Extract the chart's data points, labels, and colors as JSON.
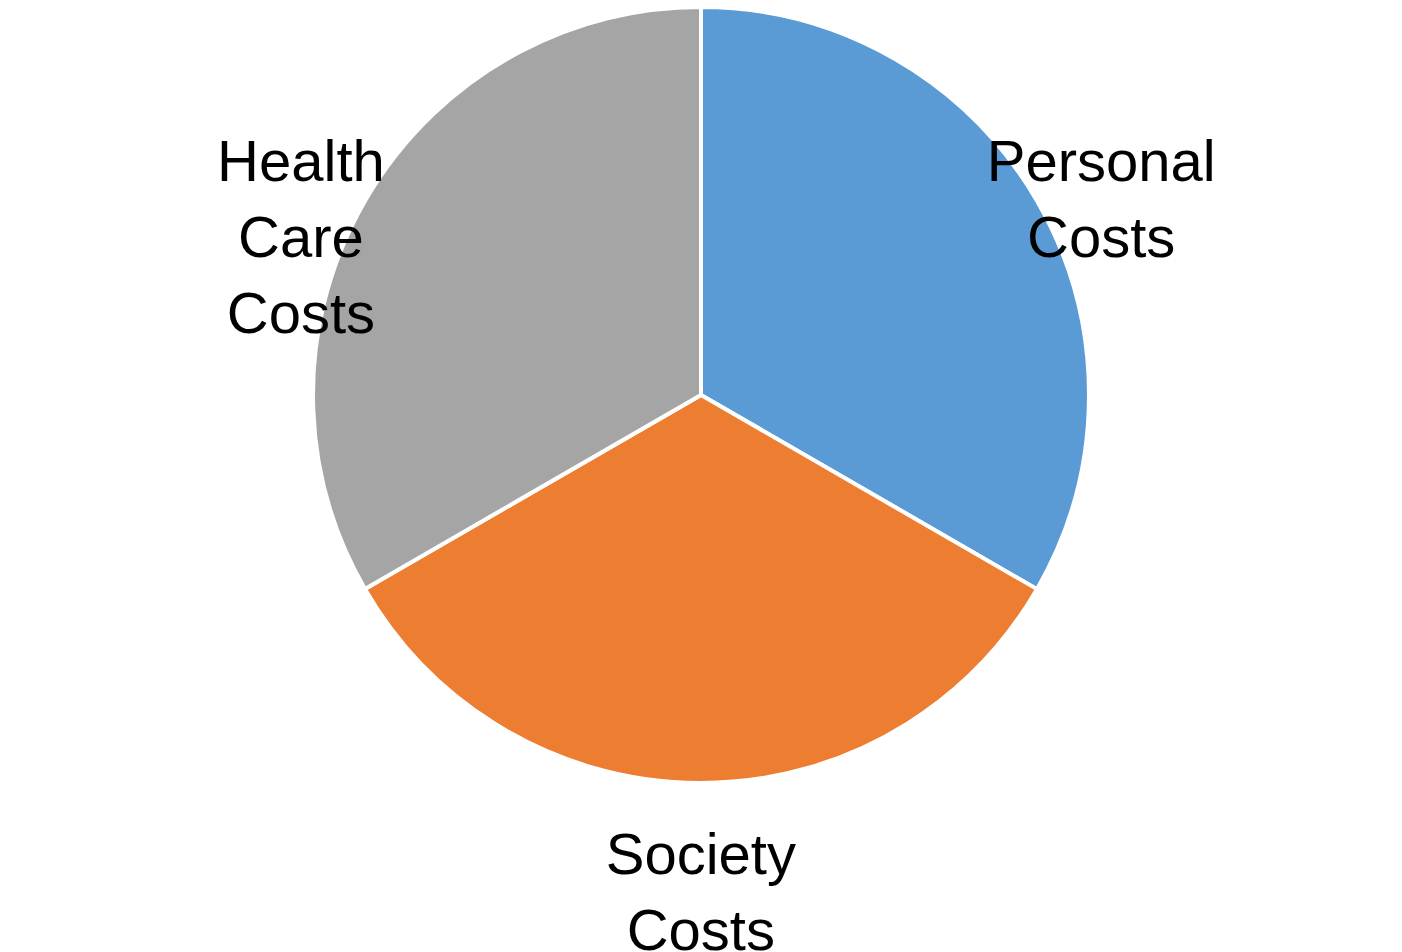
{
  "chart_data": {
    "type": "pie",
    "categories": [
      "Personal Costs",
      "Society Costs",
      "Health Care Costs"
    ],
    "values": [
      33.34,
      33.33,
      33.33
    ],
    "colors": [
      "#5b9bd5",
      "#ed7d31",
      "#a5a5a5"
    ]
  }
}
